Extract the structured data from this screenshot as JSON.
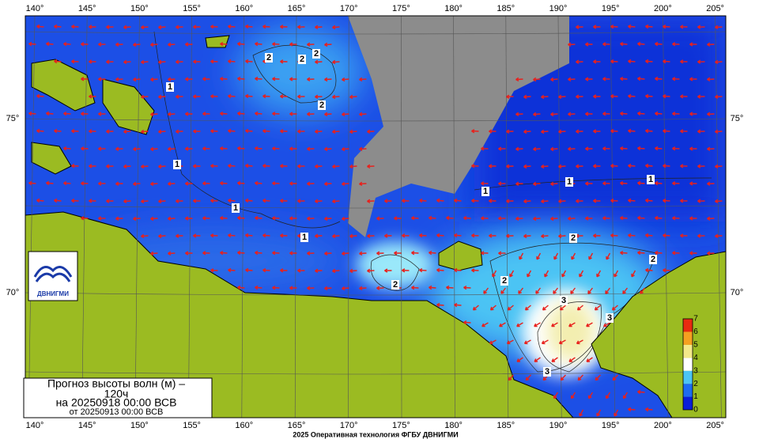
{
  "lon_labels": [
    "140°",
    "145°",
    "150°",
    "155°",
    "160°",
    "165°",
    "170°",
    "175°",
    "180°",
    "185°",
    "190°",
    "195°",
    "200°",
    "205°"
  ],
  "lat_labels": [
    "75°",
    "70°"
  ],
  "contour_labels": [
    "2",
    "2",
    "2",
    "2",
    "1",
    "1",
    "1",
    "1",
    "1",
    "1",
    "1",
    "2",
    "2",
    "2",
    "2",
    "3",
    "3",
    "3"
  ],
  "legend_box": {
    "lines": [
      "Прогноз высоты волн (м) –",
      "120ч",
      "на 20250918 00:00 ВСВ",
      "от 20250913 00:00 ВСВ"
    ]
  },
  "colorbar": {
    "ticks": [
      "0",
      "1",
      "2",
      "3",
      "4",
      "5",
      "6",
      "7"
    ]
  },
  "logo": "ДВНИГМИ",
  "footer": "2025 Оперативная технология ФГБУ ДВНИГМИ"
}
